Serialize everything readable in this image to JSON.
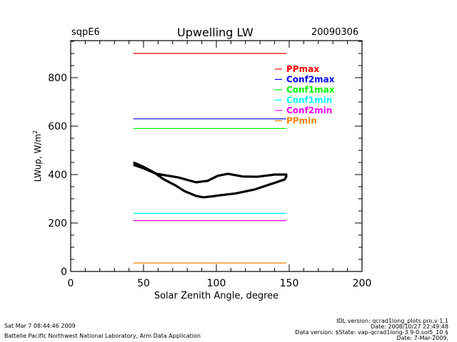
{
  "header": {
    "site": "sqpE6",
    "title": "Upwelling LW",
    "date": "20090306"
  },
  "footer": {
    "timestamp": "Sat Mar  7 08:44:46 2009",
    "lab": "Battelle Pacific Northwest National Laboratory, Arm Data Application",
    "idl_version": "IDL version: qcrad1long_plots.pro,v 1.1",
    "idl_date": "Date: 2008/10/27 22:49:48",
    "data_version": "Data version: $State: vap-qcrad1long-3.9-0.sol5_10 $",
    "data_date": "Date: 7-Mar-2009,"
  },
  "chart_data": {
    "type": "line",
    "title": "Upwelling LW",
    "xlabel": "Solar Zenith Angle, degree",
    "ylabel": "LWup, W/m²",
    "xlim": [
      0,
      200
    ],
    "ylim": [
      0,
      953
    ],
    "x_ticks": [
      0,
      50,
      100,
      150,
      200
    ],
    "x_tick_labels": [
      "0",
      "50",
      "100",
      "150",
      "200"
    ],
    "x_minor_step": 10,
    "y_ticks": [
      0,
      200,
      400,
      600,
      800
    ],
    "y_tick_labels": [
      "0",
      "200",
      "400",
      "600",
      "800"
    ],
    "y_minor_step": 50,
    "grid": false,
    "legend_position": "top-right",
    "limits": [
      {
        "name": "PPmax",
        "value": 900,
        "color": "#ff0000",
        "x_range": [
          43,
          148
        ]
      },
      {
        "name": "Conf2max",
        "value": 630,
        "color": "#0000ff",
        "x_range": [
          43,
          148
        ]
      },
      {
        "name": "Conf1max",
        "value": 590,
        "color": "#00ff00",
        "x_range": [
          43,
          148
        ]
      },
      {
        "name": "Conf1min",
        "value": 240,
        "color": "#00ffff",
        "x_range": [
          43,
          148
        ]
      },
      {
        "name": "Conf2min",
        "value": 210,
        "color": "#ff00ff",
        "x_range": [
          43,
          148
        ]
      },
      {
        "name": "PPmin",
        "value": 35,
        "color": "#ff8000",
        "x_range": [
          43,
          148
        ]
      }
    ],
    "series": [
      {
        "name": "LWup",
        "color": "#000000",
        "x": [
          43,
          45,
          50,
          58,
          64,
          72,
          78,
          86,
          91,
          97,
          103,
          113,
          126,
          138,
          147,
          148,
          148,
          140,
          128,
          118,
          108,
          101,
          94,
          86,
          74,
          59,
          50,
          43
        ],
        "y": [
          440,
          436,
          426,
          405,
          380,
          355,
          332,
          312,
          306,
          310,
          315,
          322,
          338,
          362,
          380,
          392,
          400,
          400,
          391,
          392,
          403,
          395,
          374,
          368,
          388,
          403,
          432,
          450
        ]
      }
    ]
  }
}
